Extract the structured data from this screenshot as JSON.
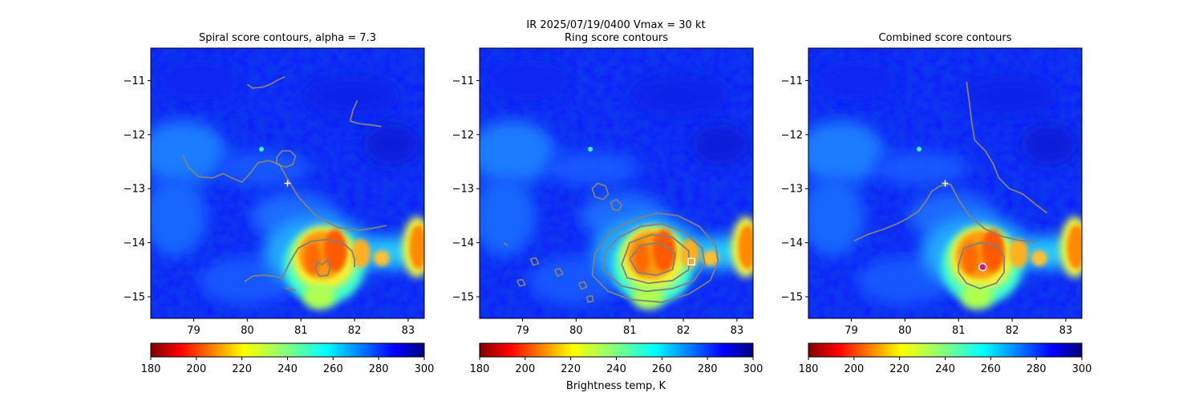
{
  "suptitle_line1": "IR  2025/07/19/0400    Vmax = 30 kt",
  "colorbar_label": "Brightness temp, K",
  "colorbar": {
    "ticks": [
      180,
      200,
      220,
      240,
      260,
      280,
      300
    ],
    "range": [
      180,
      300
    ],
    "colormap": "jet_r"
  },
  "chart_data": [
    {
      "type": "heatmap",
      "title": "Spiral score contours, alpha =  7.3",
      "xticks": [
        79,
        80,
        81,
        82,
        83
      ],
      "yticks": [
        -11,
        -12,
        -13,
        -14,
        -15
      ],
      "xlim": [
        78.2,
        83.3
      ],
      "ylim": [
        -15.4,
        -10.4
      ],
      "center_marker": {
        "symbol": "+",
        "color": "#ffffff",
        "x": 80.75,
        "y": -12.9
      },
      "contour_color": "#808080",
      "contours": [
        [
          [
            80.0,
            -11.07
          ],
          [
            80.1,
            -11.14
          ],
          [
            80.3,
            -11.12
          ],
          [
            80.45,
            -11.06
          ],
          [
            80.55,
            -11.0
          ],
          [
            80.7,
            -10.93
          ]
        ],
        [
          [
            82.05,
            -11.37
          ],
          [
            81.97,
            -11.55
          ],
          [
            81.92,
            -11.75
          ],
          [
            82.1,
            -11.8
          ],
          [
            82.3,
            -11.82
          ],
          [
            82.5,
            -11.85
          ]
        ],
        [
          [
            78.8,
            -12.38
          ],
          [
            78.9,
            -12.6
          ],
          [
            79.1,
            -12.78
          ],
          [
            79.35,
            -12.8
          ],
          [
            79.55,
            -12.72
          ],
          [
            79.75,
            -12.82
          ],
          [
            79.9,
            -12.88
          ],
          [
            80.05,
            -12.72
          ],
          [
            80.2,
            -12.52
          ],
          [
            80.4,
            -12.48
          ],
          [
            80.6,
            -12.55
          ],
          [
            80.75,
            -12.82
          ],
          [
            80.95,
            -13.15
          ],
          [
            81.3,
            -13.52
          ],
          [
            81.7,
            -13.72
          ],
          [
            82.1,
            -13.77
          ],
          [
            82.4,
            -13.72
          ],
          [
            82.6,
            -13.68
          ]
        ],
        [
          [
            80.55,
            -12.55
          ],
          [
            80.72,
            -12.6
          ],
          [
            80.85,
            -12.55
          ],
          [
            80.9,
            -12.4
          ],
          [
            80.8,
            -12.3
          ],
          [
            80.65,
            -12.3
          ],
          [
            80.55,
            -12.42
          ],
          [
            80.55,
            -12.55
          ]
        ],
        [
          [
            79.95,
            -14.72
          ],
          [
            80.1,
            -14.62
          ],
          [
            80.3,
            -14.6
          ],
          [
            80.5,
            -14.62
          ],
          [
            80.65,
            -14.66
          ],
          [
            80.8,
            -14.35
          ],
          [
            80.95,
            -14.1
          ],
          [
            81.2,
            -13.97
          ],
          [
            81.5,
            -13.94
          ],
          [
            81.8,
            -14.02
          ],
          [
            81.95,
            -14.15
          ],
          [
            82.0,
            -14.3
          ],
          [
            82.0,
            -14.45
          ]
        ],
        [
          [
            81.3,
            -14.35
          ],
          [
            81.4,
            -14.4
          ],
          [
            81.5,
            -14.32
          ],
          [
            81.55,
            -14.45
          ],
          [
            81.5,
            -14.6
          ],
          [
            81.35,
            -14.62
          ],
          [
            81.27,
            -14.5
          ],
          [
            81.3,
            -14.35
          ]
        ],
        [
          [
            80.7,
            -14.84
          ],
          [
            80.8,
            -14.85
          ],
          [
            80.9,
            -14.88
          ]
        ]
      ]
    },
    {
      "type": "heatmap",
      "title": "Ring score contours",
      "xticks": [
        79,
        80,
        81,
        82,
        83
      ],
      "yticks": [
        -11,
        -12,
        -13,
        -14,
        -15
      ],
      "xlim": [
        78.2,
        83.3
      ],
      "ylim": [
        -15.4,
        -10.4
      ],
      "center_marker": {
        "symbol": "square",
        "color": "#ffffff",
        "x": 82.15,
        "y": -14.35
      },
      "contour_color": "#808080",
      "contours": [
        [
          [
            80.3,
            -14.6
          ],
          [
            80.35,
            -14.2
          ],
          [
            80.6,
            -13.85
          ],
          [
            81.0,
            -13.6
          ],
          [
            81.5,
            -13.45
          ],
          [
            81.9,
            -13.5
          ],
          [
            82.3,
            -13.7
          ],
          [
            82.6,
            -14.05
          ],
          [
            82.65,
            -14.35
          ],
          [
            82.5,
            -14.7
          ],
          [
            82.1,
            -14.95
          ],
          [
            81.6,
            -15.1
          ],
          [
            81.0,
            -15.05
          ],
          [
            80.6,
            -14.9
          ],
          [
            80.3,
            -14.6
          ]
        ],
        [
          [
            80.5,
            -14.5
          ],
          [
            80.55,
            -14.15
          ],
          [
            80.8,
            -13.9
          ],
          [
            81.2,
            -13.7
          ],
          [
            81.6,
            -13.65
          ],
          [
            82.0,
            -13.8
          ],
          [
            82.35,
            -14.1
          ],
          [
            82.4,
            -14.4
          ],
          [
            82.2,
            -14.7
          ],
          [
            81.8,
            -14.85
          ],
          [
            81.3,
            -14.9
          ],
          [
            80.85,
            -14.8
          ],
          [
            80.5,
            -14.5
          ]
        ],
        [
          [
            80.85,
            -14.4
          ],
          [
            81.0,
            -14.0
          ],
          [
            81.4,
            -13.85
          ],
          [
            81.8,
            -13.9
          ],
          [
            82.1,
            -14.15
          ],
          [
            82.1,
            -14.5
          ],
          [
            81.8,
            -14.7
          ],
          [
            81.35,
            -14.75
          ],
          [
            80.95,
            -14.65
          ],
          [
            80.85,
            -14.4
          ]
        ],
        [
          [
            81.0,
            -14.3
          ],
          [
            81.2,
            -14.05
          ],
          [
            81.55,
            -14.0
          ],
          [
            81.85,
            -14.2
          ],
          [
            81.8,
            -14.5
          ],
          [
            81.5,
            -14.6
          ],
          [
            81.15,
            -14.55
          ],
          [
            81.0,
            -14.3
          ]
        ],
        [
          [
            80.3,
            -13.0
          ],
          [
            80.4,
            -12.9
          ],
          [
            80.55,
            -12.95
          ],
          [
            80.6,
            -13.1
          ],
          [
            80.5,
            -13.2
          ],
          [
            80.35,
            -13.15
          ],
          [
            80.3,
            -13.0
          ]
        ],
        [
          [
            80.65,
            -13.25
          ],
          [
            80.75,
            -13.2
          ],
          [
            80.85,
            -13.3
          ],
          [
            80.8,
            -13.4
          ],
          [
            80.68,
            -13.38
          ],
          [
            80.65,
            -13.25
          ]
        ],
        [
          [
            79.15,
            -14.3
          ],
          [
            79.25,
            -14.28
          ],
          [
            79.3,
            -14.38
          ],
          [
            79.2,
            -14.42
          ],
          [
            79.15,
            -14.3
          ]
        ],
        [
          [
            79.6,
            -14.5
          ],
          [
            79.7,
            -14.48
          ],
          [
            79.75,
            -14.58
          ],
          [
            79.65,
            -14.62
          ],
          [
            79.6,
            -14.5
          ]
        ],
        [
          [
            78.9,
            -14.7
          ],
          [
            79.0,
            -14.68
          ],
          [
            79.05,
            -14.78
          ],
          [
            78.95,
            -14.8
          ],
          [
            78.9,
            -14.7
          ]
        ],
        [
          [
            78.65,
            -14.0
          ],
          [
            78.72,
            -14.05
          ]
        ],
        [
          [
            80.05,
            -14.75
          ],
          [
            80.15,
            -14.72
          ],
          [
            80.2,
            -14.82
          ],
          [
            80.1,
            -14.86
          ],
          [
            80.05,
            -14.75
          ]
        ],
        [
          [
            80.2,
            -15.0
          ],
          [
            80.3,
            -14.98
          ],
          [
            80.32,
            -15.08
          ],
          [
            80.22,
            -15.1
          ],
          [
            80.2,
            -15.0
          ]
        ]
      ]
    },
    {
      "type": "heatmap",
      "title": "Combined score contours",
      "xticks": [
        79,
        80,
        81,
        82,
        83
      ],
      "yticks": [
        -11,
        -12,
        -13,
        -14,
        -15
      ],
      "xlim": [
        78.2,
        83.3
      ],
      "ylim": [
        -15.4,
        -10.4
      ],
      "center_marker": {
        "symbol": "+",
        "color": "#ffffff",
        "x": 80.75,
        "y": -12.9
      },
      "best_center": {
        "symbol": "circle",
        "fill": "#e0137a",
        "edge": "#ffffff",
        "x": 81.45,
        "y": -14.45
      },
      "contour_color": "#808080",
      "contours": [
        [
          [
            79.05,
            -13.97
          ],
          [
            79.3,
            -13.85
          ],
          [
            79.6,
            -13.75
          ],
          [
            79.85,
            -13.65
          ],
          [
            80.05,
            -13.55
          ],
          [
            80.25,
            -13.42
          ],
          [
            80.4,
            -13.22
          ],
          [
            80.5,
            -13.05
          ],
          [
            80.65,
            -12.95
          ],
          [
            80.85,
            -12.92
          ],
          [
            81.0,
            -13.2
          ],
          [
            81.2,
            -13.5
          ],
          [
            81.5,
            -13.75
          ],
          [
            81.8,
            -13.88
          ],
          [
            82.1,
            -13.95
          ],
          [
            82.3,
            -13.98
          ],
          [
            82.45,
            -14.0
          ]
        ],
        [
          [
            81.15,
            -11.02
          ],
          [
            81.2,
            -11.4
          ],
          [
            81.25,
            -11.8
          ],
          [
            81.3,
            -12.1
          ],
          [
            81.5,
            -12.3
          ],
          [
            81.65,
            -12.55
          ],
          [
            81.75,
            -12.8
          ],
          [
            81.95,
            -13.0
          ],
          [
            82.2,
            -13.1
          ],
          [
            82.45,
            -13.3
          ],
          [
            82.65,
            -13.45
          ]
        ],
        [
          [
            81.0,
            -14.4
          ],
          [
            81.1,
            -14.1
          ],
          [
            81.4,
            -14.0
          ],
          [
            81.7,
            -14.05
          ],
          [
            81.85,
            -14.25
          ],
          [
            81.85,
            -14.55
          ],
          [
            81.7,
            -14.75
          ],
          [
            81.4,
            -14.85
          ],
          [
            81.15,
            -14.75
          ],
          [
            81.0,
            -14.55
          ],
          [
            81.0,
            -14.4
          ]
        ]
      ]
    }
  ]
}
